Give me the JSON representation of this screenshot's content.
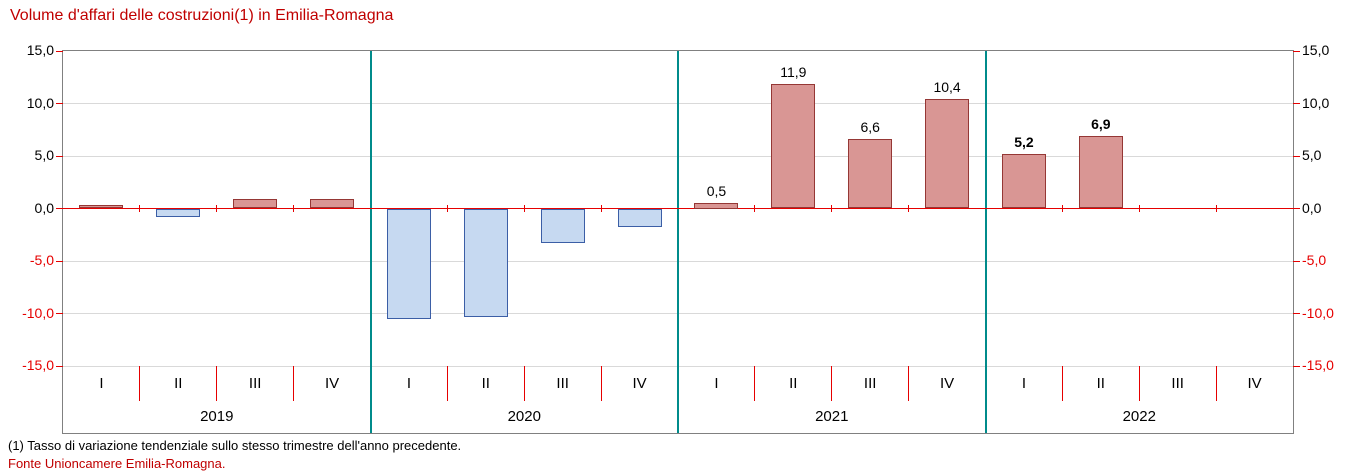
{
  "footnote": "(1) Tasso di variazione tendenziale sullo stesso trimestre dell'anno precedente.",
  "source": "Fonte Unioncamere Emilia-Romagna.",
  "colors": {
    "title": "#C00000",
    "axis_red": "#E60000",
    "positive_fill": "#D99694",
    "positive_border": "#953735",
    "negative_fill": "#C6D9F1",
    "negative_border": "#3B5EA6",
    "year_separator": "#008B8B",
    "gridline": "#D9D9D9",
    "plot_border": "#808080",
    "label_black": "#000000"
  },
  "chart_data": {
    "type": "bar",
    "title": "Volume d'affari delle costruzioni(1) in Emilia-Romagna",
    "xlabel": "",
    "ylabel": "",
    "ylim": [
      -15,
      15
    ],
    "ytick_step": 5,
    "ytick_labels": [
      "15,0",
      "10,0",
      "5,0",
      "0,0",
      "-5,0",
      "-10,0",
      "-15,0"
    ],
    "grid": true,
    "legend": "none",
    "groups": [
      {
        "year": "2019",
        "categories": [
          "I",
          "II",
          "III",
          "IV"
        ],
        "values": [
          0.3,
          -0.8,
          0.9,
          0.9
        ],
        "data_labels": [
          null,
          null,
          null,
          null
        ],
        "bold": false
      },
      {
        "year": "2020",
        "categories": [
          "I",
          "II",
          "III",
          "IV"
        ],
        "values": [
          -10.5,
          -10.3,
          -3.2,
          -1.7
        ],
        "data_labels": [
          null,
          null,
          null,
          null
        ],
        "bold": false
      },
      {
        "year": "2021",
        "categories": [
          "I",
          "II",
          "III",
          "IV"
        ],
        "values": [
          0.5,
          11.9,
          6.6,
          10.4
        ],
        "data_labels": [
          "0,5",
          "11,9",
          "6,6",
          "10,4"
        ],
        "bold": false
      },
      {
        "year": "2022",
        "categories": [
          "I",
          "II",
          "III",
          "IV"
        ],
        "values": [
          5.2,
          6.9,
          null,
          null
        ],
        "data_labels": [
          "5,2",
          "6,9",
          null,
          null
        ],
        "bold": true
      }
    ]
  }
}
